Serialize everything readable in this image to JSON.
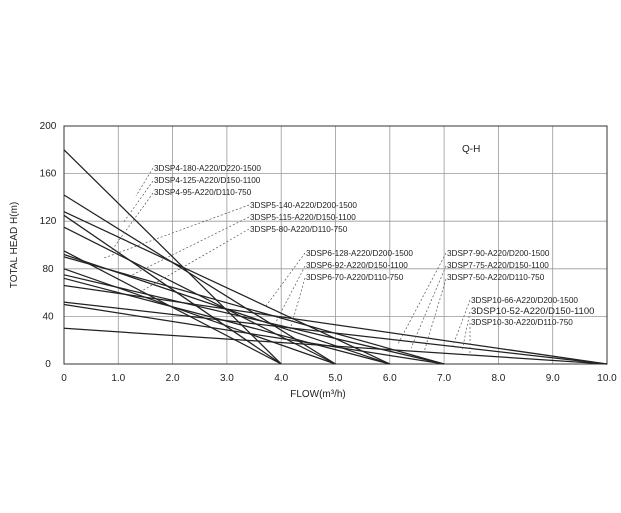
{
  "chart_data": {
    "type": "line",
    "title": "Q-H",
    "xlabel": "FLOW(m³/h)",
    "ylabel": "TOTAL HEAD H(m)",
    "xlim": [
      0,
      10
    ],
    "ylim": [
      0,
      200
    ],
    "x_ticks": [
      "0",
      "1.0",
      "2.0",
      "3.0",
      "4.0",
      "5.0",
      "6.0",
      "7.0",
      "8.0",
      "9.0",
      "10.0"
    ],
    "y_ticks": [
      "0",
      "40",
      "80",
      "120",
      "160",
      "200"
    ],
    "grid": true,
    "line_color": "#222222",
    "series": [
      {
        "name": "3DSP4-180-A220/D220-1500",
        "x": [
          0,
          4.0
        ],
        "y": [
          180,
          0
        ]
      },
      {
        "name": "3DSP4-125-A220/D150-1100",
        "x": [
          0,
          4.0
        ],
        "y": [
          125,
          0
        ]
      },
      {
        "name": "3DSP4-95-A220/D110-750",
        "x": [
          0,
          4.0
        ],
        "y": [
          95,
          0
        ]
      },
      {
        "name": "3DSP5-140-A220/D200-1500",
        "x": [
          0,
          5.0
        ],
        "y": [
          142,
          0
        ]
      },
      {
        "name": "3DSP5-115-A220/D150-1100",
        "x": [
          0,
          5.0
        ],
        "y": [
          115,
          0
        ]
      },
      {
        "name": "3DSP5-80-A220/D110-750",
        "x": [
          0,
          5.0
        ],
        "y": [
          80,
          0
        ]
      },
      {
        "name": "3DSP6-128-A220/D200-1500",
        "x": [
          0,
          6.0
        ],
        "y": [
          128,
          0
        ]
      },
      {
        "name": "3DSP6-92-A220/D150-1100",
        "x": [
          0,
          6.0
        ],
        "y": [
          92,
          0
        ]
      },
      {
        "name": "3DSP6-70-A220/D110-750",
        "x": [
          0,
          6.0
        ],
        "y": [
          72,
          0
        ]
      },
      {
        "name": "3DSP7-90-A220/D200-1500",
        "x": [
          0,
          7.0
        ],
        "y": [
          90,
          0
        ]
      },
      {
        "name": "3DSP7-75-A220/D150-1100",
        "x": [
          0,
          7.0
        ],
        "y": [
          75,
          0
        ]
      },
      {
        "name": "3DSP7-50-A220/D110-750",
        "x": [
          0,
          7.0
        ],
        "y": [
          50,
          0
        ]
      },
      {
        "name": "3DSP10-66-A220/D200-1500",
        "x": [
          0,
          10.0
        ],
        "y": [
          66,
          0
        ]
      },
      {
        "name": "3DSP10-52-A220/D150-1100",
        "x": [
          0,
          10.0
        ],
        "y": [
          52,
          0
        ]
      },
      {
        "name": "3DSP10-30-A220/D110-750",
        "x": [
          0,
          10.0
        ],
        "y": [
          30,
          0
        ]
      }
    ]
  }
}
